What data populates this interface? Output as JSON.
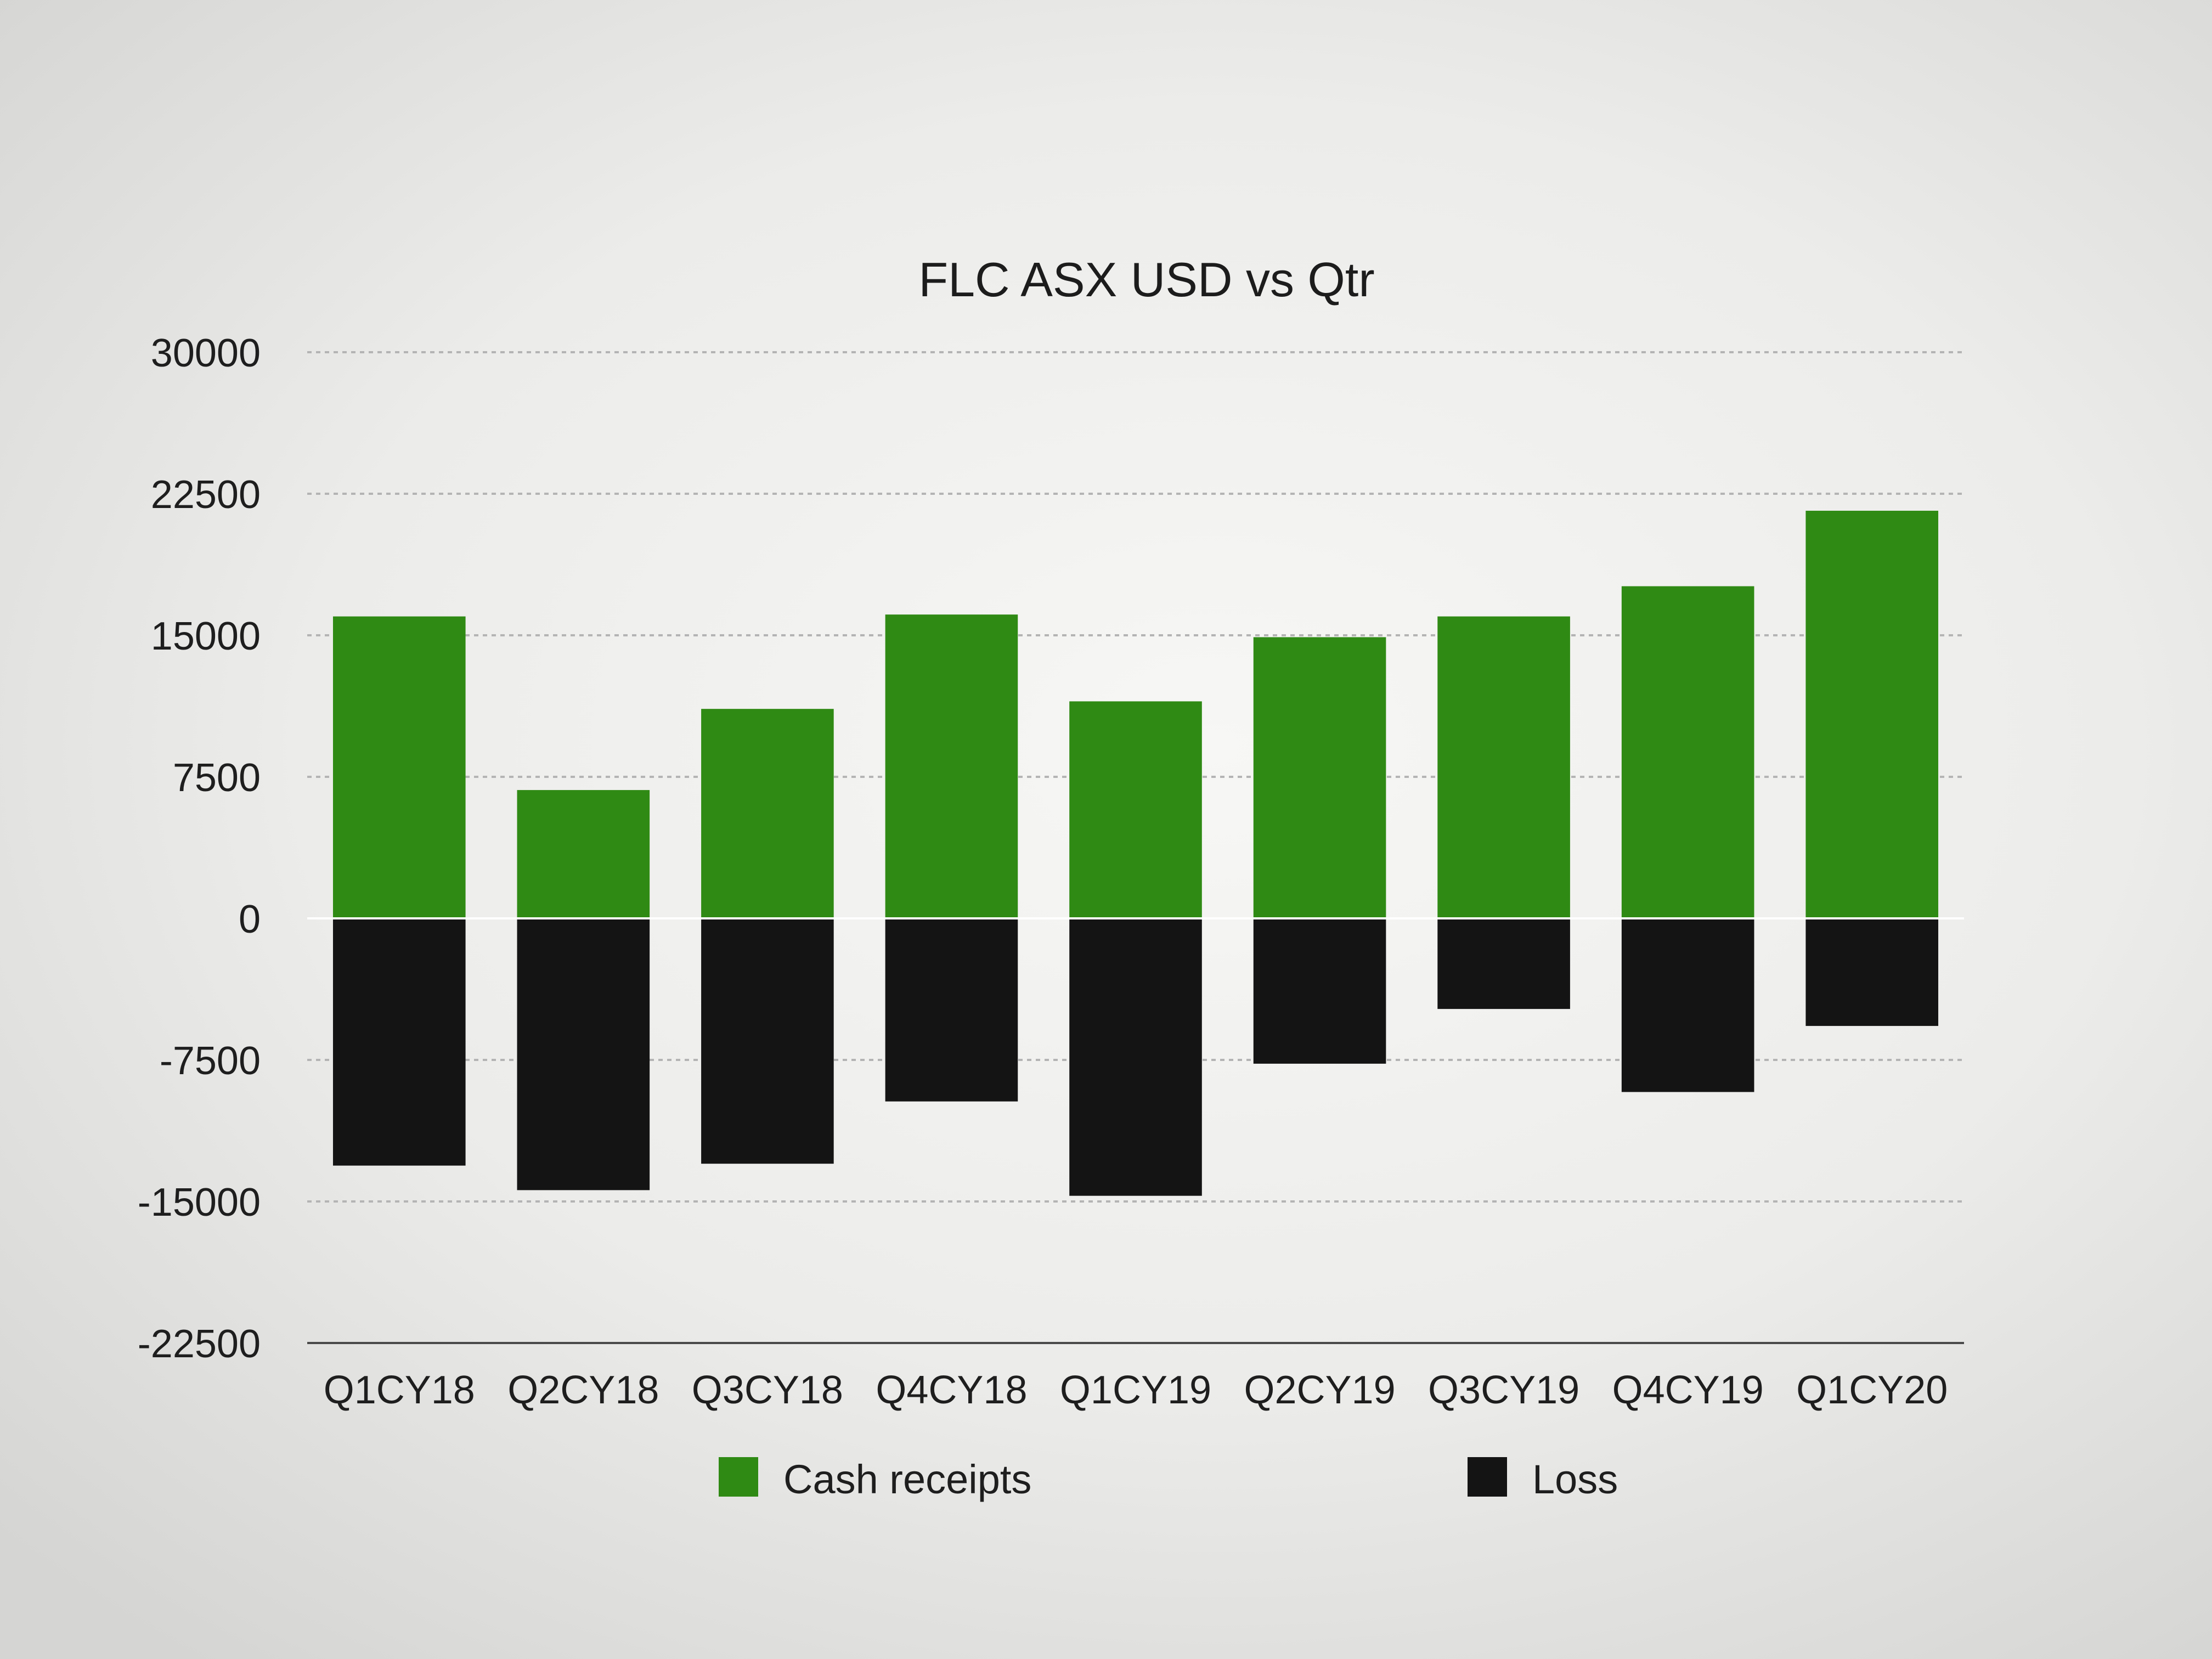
{
  "chart_data": {
    "type": "bar",
    "stacked": true,
    "title": "FLC ASX USD vs Qtr",
    "xlabel": "",
    "ylabel": "",
    "categories": [
      "Q1CY18",
      "Q2CY18",
      "Q3CY18",
      "Q4CY18",
      "Q1CY19",
      "Q2CY19",
      "Q3CY19",
      "Q4CY19",
      "Q1CY20"
    ],
    "series": [
      {
        "name": "Cash receipts",
        "color": "#2f8a14",
        "values": [
          16000,
          6800,
          11100,
          16100,
          11500,
          14900,
          16000,
          17600,
          21600
        ]
      },
      {
        "name": "Loss",
        "color": "#141414",
        "values": [
          -13100,
          -14400,
          -13000,
          -9700,
          -14700,
          -7700,
          -4800,
          -9200,
          -5700
        ]
      }
    ],
    "ylim": [
      -22500,
      30000
    ],
    "yticks": [
      "30000",
      "22500",
      "15000",
      "7500",
      "0",
      "-7500",
      "-15000",
      "-22500"
    ],
    "grid": true,
    "legend_position": "bottom"
  }
}
